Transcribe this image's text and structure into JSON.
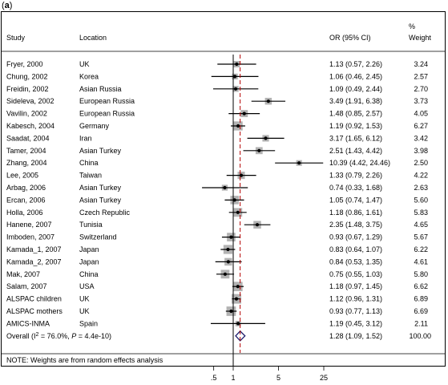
{
  "panel_label": "a",
  "header": {
    "study": "Study",
    "location": "Location",
    "or_ci": "OR (95% CI)",
    "weight_line1": "%",
    "weight_line2": "Weight"
  },
  "note": "NOTE: Weights are from random effects analysis",
  "chart_data": {
    "type": "scatter",
    "subtype": "forest-plot",
    "x_scale": "log",
    "x_ticks": [
      ".5",
      "1",
      "5",
      "25"
    ],
    "x_tick_values": [
      0.5,
      1,
      5,
      25
    ],
    "null_line": 1,
    "overall_line": 1.28,
    "colors": {
      "point": "#000000",
      "weight_box": "#b3b3b3",
      "ci": "#000000",
      "overall_line": "#b30000",
      "diamond": "#1b1b6b"
    },
    "studies": [
      {
        "study": "Fryer, 2000",
        "location": "UK",
        "or": 1.13,
        "lo": 0.57,
        "hi": 2.26,
        "ci_text": "1.13 (0.57, 2.26)",
        "weight": "3.24"
      },
      {
        "study": "Chung, 2002",
        "location": "Korea",
        "or": 1.06,
        "lo": 0.46,
        "hi": 2.45,
        "ci_text": "1.06 (0.46, 2.45)",
        "weight": "2.57"
      },
      {
        "study": "Freidin, 2002",
        "location": "Asian Russia",
        "or": 1.09,
        "lo": 0.49,
        "hi": 2.44,
        "ci_text": "1.09 (0.49, 2.44)",
        "weight": "2.70"
      },
      {
        "study": "Sideleva, 2002",
        "location": "European Russia",
        "or": 3.49,
        "lo": 1.91,
        "hi": 6.38,
        "ci_text": "3.49 (1.91, 6.38)",
        "weight": "3.73"
      },
      {
        "study": "Vavilin, 2002",
        "location": "European Russia",
        "or": 1.48,
        "lo": 0.85,
        "hi": 2.57,
        "ci_text": "1.48 (0.85, 2.57)",
        "weight": "4.05"
      },
      {
        "study": "Kabesch, 2004",
        "location": "Germany",
        "or": 1.19,
        "lo": 0.92,
        "hi": 1.53,
        "ci_text": "1.19 (0.92, 1.53)",
        "weight": "6.27"
      },
      {
        "study": "Saadat, 2004",
        "location": "Iran",
        "or": 3.17,
        "lo": 1.65,
        "hi": 6.12,
        "ci_text": "3.17 (1.65, 6.12)",
        "weight": "3.42"
      },
      {
        "study": "Tamer, 2004",
        "location": "Asian Turkey",
        "or": 2.51,
        "lo": 1.43,
        "hi": 4.42,
        "ci_text": "2.51 (1.43, 4.42)",
        "weight": "3.98"
      },
      {
        "study": "Zhang, 2004",
        "location": "China",
        "or": 10.39,
        "lo": 4.42,
        "hi": 24.46,
        "ci_text": "10.39 (4.42, 24.46)",
        "weight": "2.50"
      },
      {
        "study": "Lee, 2005",
        "location": "Taiwan",
        "or": 1.33,
        "lo": 0.79,
        "hi": 2.26,
        "ci_text": "1.33 (0.79, 2.26)",
        "weight": "4.22"
      },
      {
        "study": "Arbag, 2006",
        "location": "Asian Turkey",
        "or": 0.74,
        "lo": 0.33,
        "hi": 1.68,
        "ci_text": "0.74 (0.33, 1.68)",
        "weight": "2.63"
      },
      {
        "study": "Ercan, 2006",
        "location": "Asian Turkey",
        "or": 1.05,
        "lo": 0.74,
        "hi": 1.47,
        "ci_text": "1.05 (0.74, 1.47)",
        "weight": "5.60"
      },
      {
        "study": "Holla, 2006",
        "location": "Czech Republic",
        "or": 1.18,
        "lo": 0.86,
        "hi": 1.61,
        "ci_text": "1.18 (0.86, 1.61)",
        "weight": "5.83"
      },
      {
        "study": "Hanene, 2007",
        "location": "Tunisia",
        "or": 2.35,
        "lo": 1.48,
        "hi": 3.75,
        "ci_text": "2.35 (1.48, 3.75)",
        "weight": "4.65"
      },
      {
        "study": "Imboden, 2007",
        "location": "Switzerland",
        "or": 0.93,
        "lo": 0.67,
        "hi": 1.29,
        "ci_text": "0.93 (0.67, 1.29)",
        "weight": "5.67"
      },
      {
        "study": "Kamada_1, 2007",
        "location": "Japan",
        "or": 0.83,
        "lo": 0.64,
        "hi": 1.07,
        "ci_text": "0.83 (0.64, 1.07)",
        "weight": "6.22"
      },
      {
        "study": "Kamada_2, 2007",
        "location": "Japan",
        "or": 0.84,
        "lo": 0.53,
        "hi": 1.35,
        "ci_text": "0.84 (0.53, 1.35)",
        "weight": "4.61"
      },
      {
        "study": "Mak, 2007",
        "location": "China",
        "or": 0.75,
        "lo": 0.55,
        "hi": 1.03,
        "ci_text": "0.75 (0.55, 1.03)",
        "weight": "5.80"
      },
      {
        "study": "Salam, 2007",
        "location": "USA",
        "or": 1.18,
        "lo": 0.97,
        "hi": 1.45,
        "ci_text": "1.18 (0.97, 1.45)",
        "weight": "6.62"
      },
      {
        "study": "ALSPAC children",
        "location": "UK",
        "or": 1.12,
        "lo": 0.96,
        "hi": 1.31,
        "ci_text": "1.12 (0.96, 1.31)",
        "weight": "6.89"
      },
      {
        "study": "ALSPAC mothers",
        "location": "UK",
        "or": 0.93,
        "lo": 0.77,
        "hi": 1.13,
        "ci_text": "0.93 (0.77, 1.13)",
        "weight": "6.69"
      },
      {
        "study": "AMICS-INMA",
        "location": "Spain",
        "or": 1.19,
        "lo": 0.45,
        "hi": 3.12,
        "ci_text": "1.19 (0.45, 3.12)",
        "weight": "2.11"
      }
    ],
    "overall": {
      "label_prefix": "Overall  (I",
      "label_sup": "2",
      "label_mid": " = 76.0%, ",
      "label_p": "P",
      "label_suffix": " = 4.4e-10)",
      "or": 1.28,
      "lo": 1.09,
      "hi": 1.52,
      "ci_text": "1.28 (1.09, 1.52)",
      "weight": "100.00"
    }
  }
}
